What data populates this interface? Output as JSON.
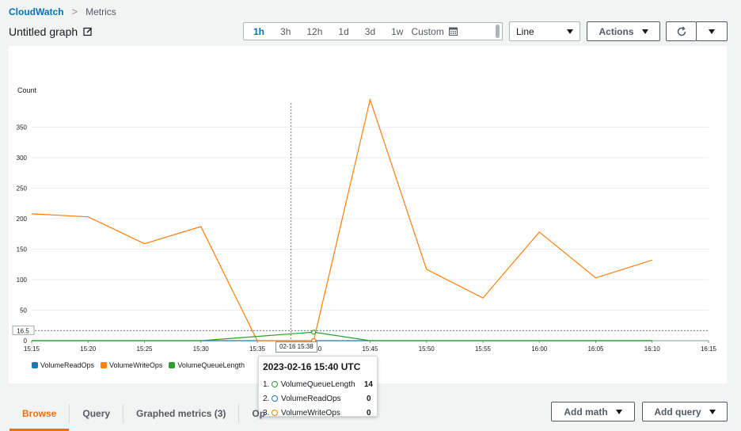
{
  "breadcrumb": {
    "root": "CloudWatch",
    "current": "Metrics"
  },
  "graph_title": "Untitled graph",
  "timerange": {
    "options": [
      "1h",
      "3h",
      "12h",
      "1d",
      "3d",
      "1w"
    ],
    "active": "1h",
    "custom_label": "Custom"
  },
  "view_select": {
    "value": "Line"
  },
  "actions_label": "Actions",
  "tabs": [
    "Browse",
    "Query",
    "Graphed metrics (3)",
    "Op"
  ],
  "active_tab": "Browse",
  "buttons": {
    "add_math": "Add math",
    "add_query": "Add query"
  },
  "hover": {
    "time_label": "02-16 15:38",
    "tooltip_title": "2023-02-16 15:40 UTC",
    "rows": [
      {
        "index": "1.",
        "name": "VolumeQueueLength",
        "value": "14",
        "color": "#2ca02c"
      },
      {
        "index": "2.",
        "name": "VolumeReadOps",
        "value": "0",
        "color": "#1f77b4"
      },
      {
        "index": "3.",
        "name": "VolumeWriteOps",
        "value": "0",
        "color": "#ff7f0e"
      }
    ],
    "y_marker": "16.5"
  },
  "chart_data": {
    "type": "line",
    "ylabel": "Count",
    "ylim": [
      0,
      400
    ],
    "yticks": [
      0,
      50,
      100,
      150,
      200,
      250,
      300,
      350
    ],
    "x": [
      "15:15",
      "15:20",
      "15:25",
      "15:30",
      "15:35",
      "15:40",
      "15:45",
      "15:50",
      "15:55",
      "16:00",
      "16:05",
      "16:10"
    ],
    "xticks": [
      "15:15",
      "15:20",
      "15:25",
      "15:30",
      "15:35",
      "15:40",
      "15:45",
      "15:50",
      "15:55",
      "16:00",
      "16:05",
      "16:10",
      "16:15"
    ],
    "series": [
      {
        "name": "VolumeReadOps",
        "color": "#1f77b4",
        "values": [
          0,
          0,
          0,
          0,
          0,
          0,
          0,
          0,
          0,
          0,
          0,
          0
        ]
      },
      {
        "name": "VolumeWriteOps",
        "color": "#ff7f0e",
        "values": [
          208,
          203,
          159,
          187,
          0,
          0,
          395,
          117,
          70,
          178,
          103,
          132
        ]
      },
      {
        "name": "VolumeQueueLength",
        "color": "#2ca02c",
        "values": [
          0,
          0,
          0,
          0,
          7,
          14,
          0,
          0,
          0,
          0,
          0,
          0
        ]
      }
    ],
    "grid": true,
    "legend": "bottom-left"
  }
}
